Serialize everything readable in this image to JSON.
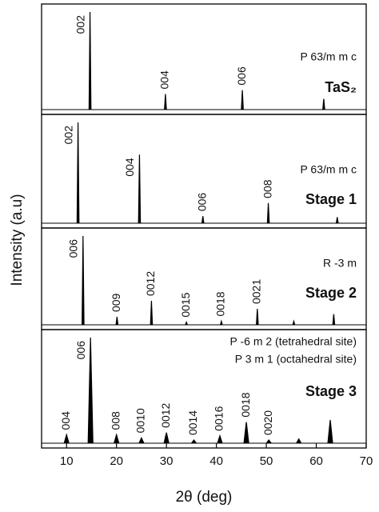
{
  "chart_data": {
    "type": "xrd-stack",
    "xlabel": "2θ (deg)",
    "ylabel": "Intensity (a.u)",
    "xlim": [
      5,
      70
    ],
    "xticks": [
      10,
      20,
      30,
      40,
      50,
      60,
      70
    ],
    "ylim": [
      0,
      100
    ],
    "color": "#000000",
    "panels": [
      {
        "name": "TaS₂",
        "phase": [
          "P 63/m m c"
        ],
        "x": [
          14.7,
          29.8,
          45.2,
          61.5
        ],
        "values": [
          100,
          16,
          20,
          11
        ],
        "labels": [
          "002",
          "004",
          "006",
          null
        ]
      },
      {
        "name": "Stage 1",
        "phase": [
          "P 63/m m c"
        ],
        "x": [
          12.3,
          24.6,
          37.3,
          50.4,
          64.2
        ],
        "values": [
          100,
          68,
          7,
          20,
          6
        ],
        "labels": [
          "002",
          "004",
          "006",
          "008",
          null
        ]
      },
      {
        "name": "Stage 2",
        "phase": [
          "R -3 m"
        ],
        "x": [
          13.3,
          20.1,
          27.0,
          34.0,
          41.0,
          48.2,
          55.5,
          63.5
        ],
        "values": [
          100,
          9,
          27,
          3,
          4,
          18,
          4,
          12
        ],
        "labels": [
          "006",
          "009",
          "0012",
          "0015",
          "0018",
          "0021",
          null,
          null
        ]
      },
      {
        "name": "Stage 3",
        "phase": [
          "P -6 m 2 (tetrahedral site)",
          "P 3 m 1 (octahedral site)"
        ],
        "x": [
          10.0,
          14.8,
          20.0,
          25.0,
          30.0,
          35.5,
          40.7,
          46.0,
          50.5,
          56.5,
          62.8
        ],
        "values": [
          8,
          100,
          8,
          5,
          10,
          3,
          7,
          20,
          3,
          4,
          22
        ],
        "labels": [
          "004",
          "006",
          "008",
          "0010",
          "0012",
          "0014",
          "0016",
          "0018",
          "0020",
          null,
          null
        ]
      }
    ]
  }
}
